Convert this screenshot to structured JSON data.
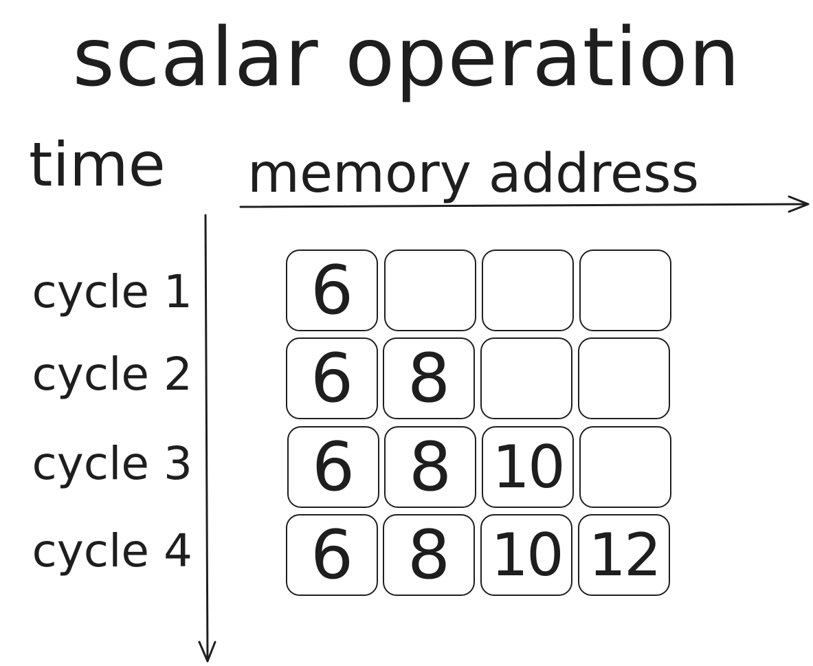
{
  "title": "scalar operation",
  "time_label": "time",
  "address_label": "memory address",
  "colors": {
    "stroke": "#1e1e1e",
    "background": "#ffffff"
  },
  "rows": [
    {
      "label": "cycle 1",
      "cells": [
        "6",
        "",
        "",
        ""
      ]
    },
    {
      "label": "cycle 2",
      "cells": [
        "6",
        "8",
        "",
        ""
      ]
    },
    {
      "label": "cycle 3",
      "cells": [
        "6",
        "8",
        "10",
        ""
      ]
    },
    {
      "label": "cycle 4",
      "cells": [
        "6",
        "8",
        "10",
        "12"
      ]
    }
  ]
}
